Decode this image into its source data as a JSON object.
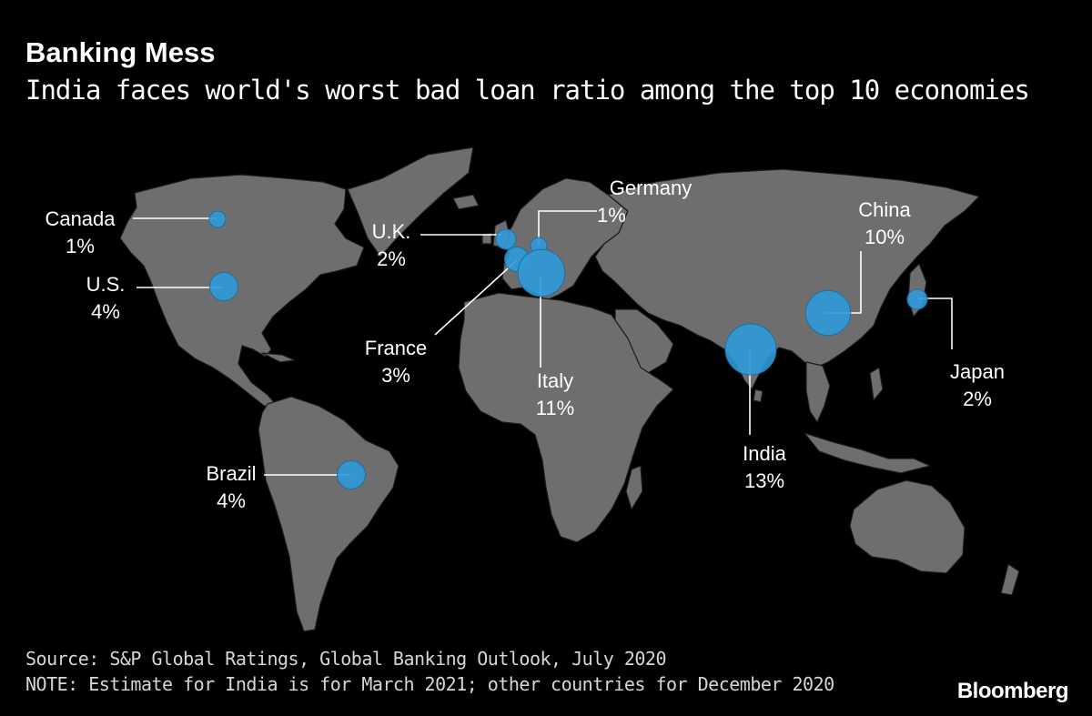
{
  "header": {
    "title": "Banking Mess",
    "subtitle": "India faces world's worst bad loan ratio among the top 10 economies"
  },
  "map": {
    "land_color": "#6e6e6e",
    "bubble_color": "#2f9ad9",
    "countries": [
      {
        "id": "canada",
        "name": "Canada",
        "value_label": "1%",
        "value": 1
      },
      {
        "id": "us",
        "name": "U.S.",
        "value_label": "4%",
        "value": 4
      },
      {
        "id": "uk",
        "name": "U.K.",
        "value_label": "2%",
        "value": 2
      },
      {
        "id": "germany",
        "name": "Germany",
        "value_label": "1%",
        "value": 1
      },
      {
        "id": "france",
        "name": "France",
        "value_label": "3%",
        "value": 3
      },
      {
        "id": "italy",
        "name": "Italy",
        "value_label": "11%",
        "value": 11
      },
      {
        "id": "brazil",
        "name": "Brazil",
        "value_label": "4%",
        "value": 4
      },
      {
        "id": "india",
        "name": "India",
        "value_label": "13%",
        "value": 13
      },
      {
        "id": "china",
        "name": "China",
        "value_label": "10%",
        "value": 10
      },
      {
        "id": "japan",
        "name": "Japan",
        "value_label": "2%",
        "value": 2
      }
    ]
  },
  "footer": {
    "source": "Source: S&P Global Ratings, Global Banking Outlook, July 2020",
    "note": "NOTE: Estimate for India is for March 2021; other countries for December 2020",
    "brand": "Bloomberg"
  }
}
